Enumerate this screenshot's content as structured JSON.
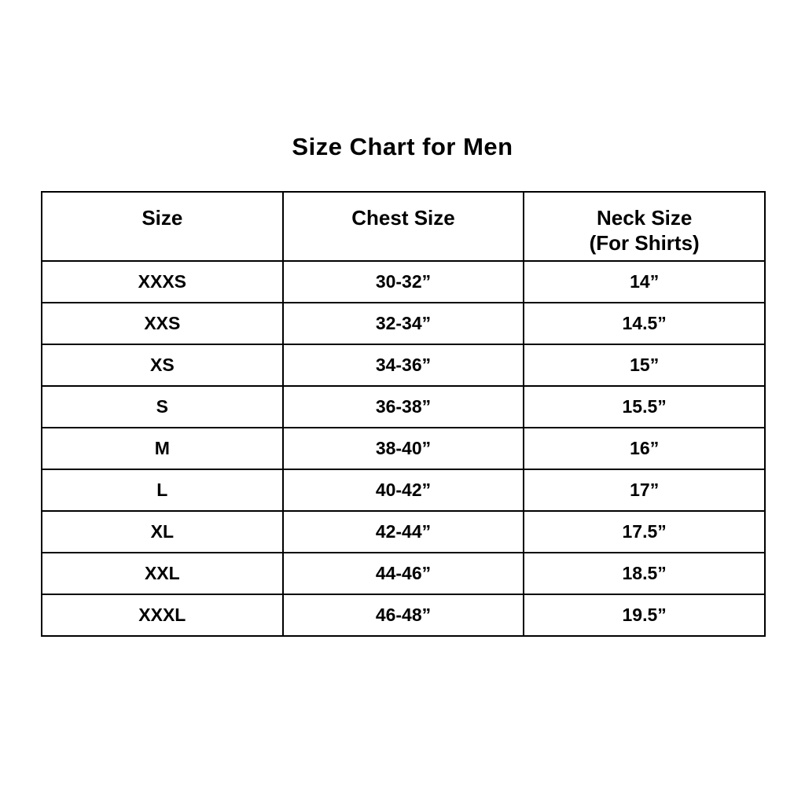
{
  "title": "Size Chart for Men",
  "colors": {
    "background": "#ffffff",
    "text": "#000000",
    "border": "#000000"
  },
  "header_lines": {
    "col1": {
      "line1": "Size",
      "line2": ""
    },
    "col2": {
      "line1": "Chest Size",
      "line2": ""
    },
    "col3": {
      "line1": "Neck Size",
      "line2": "(For Shirts)"
    }
  },
  "chart_data": {
    "type": "table",
    "title": "Size Chart for Men",
    "columns": [
      "Size",
      "Chest Size",
      "Neck Size (For Shirts)"
    ],
    "rows": [
      [
        "XXXS",
        "30-32”",
        "14”"
      ],
      [
        "XXS",
        "32-34”",
        "14.5”"
      ],
      [
        "XS",
        "34-36”",
        "15”"
      ],
      [
        "S",
        "36-38”",
        "15.5”"
      ],
      [
        "M",
        "38-40”",
        "16”"
      ],
      [
        "L",
        "40-42”",
        "17”"
      ],
      [
        "XL",
        "42-44”",
        "17.5”"
      ],
      [
        "XXL",
        "44-46”",
        "18.5”"
      ],
      [
        "XXXL",
        "46-48”",
        "19.5”"
      ]
    ]
  }
}
